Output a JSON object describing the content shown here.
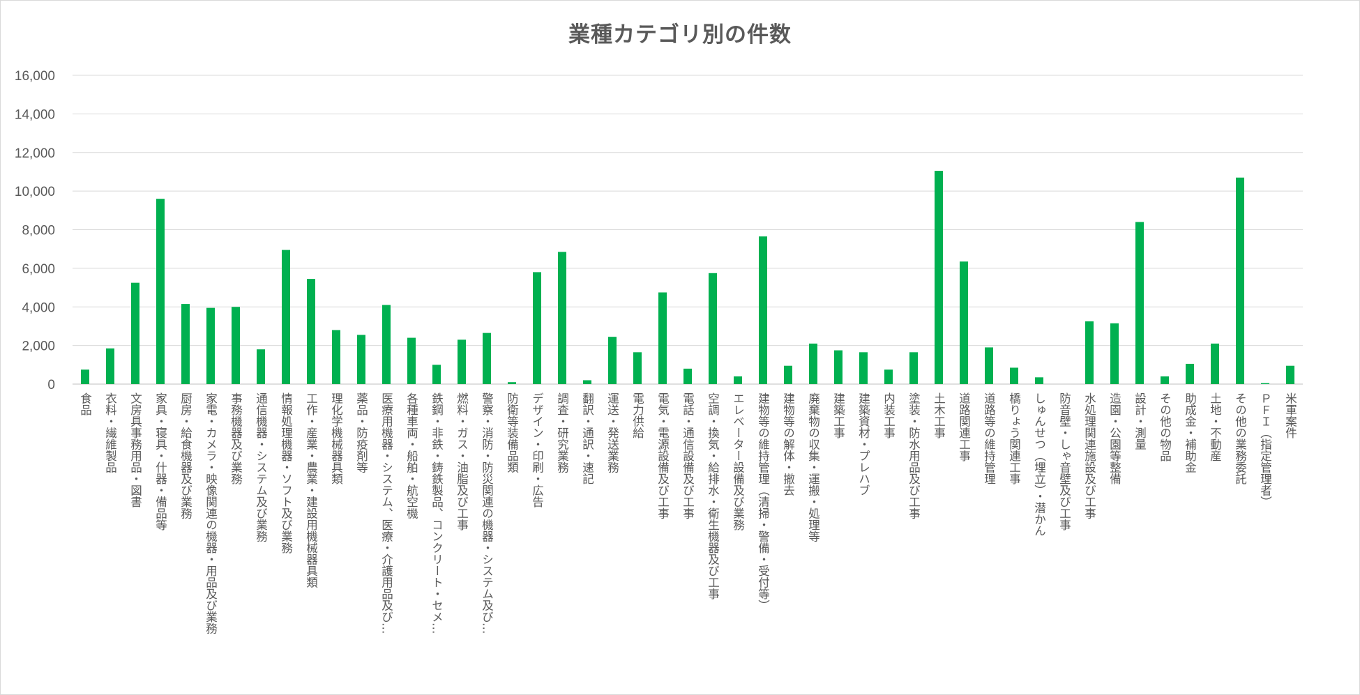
{
  "chart_data": {
    "type": "bar",
    "title": "業種カテゴリ別の件数",
    "xlabel": "",
    "ylabel": "",
    "ylim": [
      0,
      16000
    ],
    "yticks": [
      "0",
      "2,000",
      "4,000",
      "6,000",
      "8,000",
      "10,000",
      "12,000",
      "14,000",
      "16,000"
    ],
    "grid": true,
    "legend": "none",
    "bar_color": "#00b050",
    "categories": [
      "食品",
      "衣料・繊維製品",
      "文房具事務用品・図書",
      "家具・寝具・什器・備品等",
      "厨房・給食機器及び業務",
      "家電・カメラ・映像関連の機器・用品及び業務",
      "事務機器及び業務",
      "通信機器・システム及び業務",
      "情報処理機器・ソフト及び業務",
      "工作・産業・農業・建設用機械器具類",
      "理化学機械器具類",
      "薬品・防疫剤等",
      "医療用機器・システム、医療・介護用品及び…",
      "各種車両・船舶・航空機",
      "鉄鋼・非鉄・鋳鉄製品、コンクリート・セメ…",
      "燃料・ガス・油脂及び工事",
      "警察・消防・防災関連の機器・システム及び…",
      "防衛等装備品類",
      "デザイン・印刷・広告",
      "調査・研究業務",
      "翻訳・通訳・速記",
      "運送・発送業務",
      "電力供給",
      "電気・電源設備及び工事",
      "電話・通信設備及び工事",
      "空調・換気・給排水・衛生機器及び工事",
      "エレベーター設備及び業務",
      "建物等の維持管理（清掃・警備・受付等）",
      "建物等の解体・撤去",
      "廃棄物の収集・運搬・処理等",
      "建築工事",
      "建築資材・プレハブ",
      "内装工事",
      "塗装・防水用品及び工事",
      "土木工事",
      "道路関連工事",
      "道路等の維持管理",
      "橋りょう関連工事",
      "しゅんせつ（埋立）・潜かん",
      "防音壁・しゃ音壁及び工事",
      "水処理関連施設及び工事",
      "造園・公園等整備",
      "設計・測量",
      "その他の物品",
      "助成金・補助金",
      "土地・不動産",
      "その他の業務委託",
      "ＰＦＩ（指定管理者）",
      "米軍案件"
    ],
    "values": [
      750,
      1850,
      5250,
      9600,
      4150,
      3950,
      4000,
      1800,
      6950,
      5450,
      2800,
      2550,
      4100,
      2400,
      1000,
      2300,
      2650,
      100,
      5800,
      6850,
      200,
      2450,
      1650,
      4750,
      800,
      5750,
      400,
      7650,
      950,
      2100,
      1750,
      1650,
      750,
      1650,
      11050,
      6350,
      1900,
      850,
      350,
      0,
      3250,
      3150,
      8400,
      400,
      1050,
      2100,
      10700,
      50,
      950
    ]
  }
}
